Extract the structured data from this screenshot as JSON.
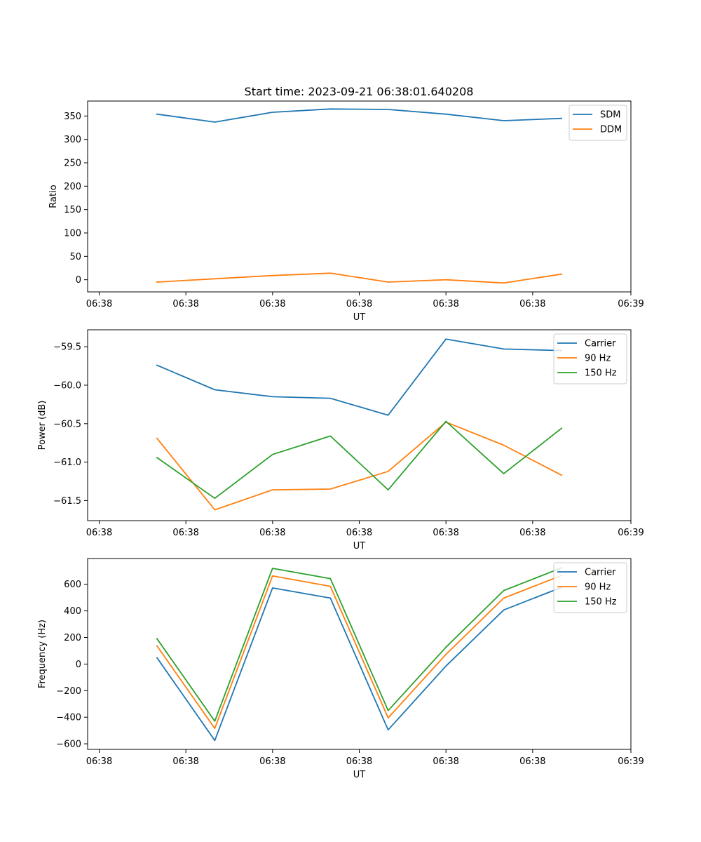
{
  "figure": {
    "title": "Start time: 2023-09-21 06:38:01.640208"
  },
  "colors": {
    "blue": "#1f77b4",
    "orange": "#ff7f0e",
    "green": "#2ca02c"
  },
  "chart_data": [
    {
      "type": "line",
      "title": "Start time: 2023-09-21 06:38:01.640208",
      "xlabel": "UT",
      "ylabel": "Ratio",
      "x": [
        1,
        2,
        3,
        4,
        5,
        6,
        7,
        8
      ],
      "xlim": [
        -0.2,
        9.2
      ],
      "x_ticks": [
        0,
        1.5,
        3,
        4.5,
        6,
        7.5,
        9.2
      ],
      "x_tick_labels": [
        "06:38",
        "06:38",
        "06:38",
        "06:38",
        "06:38",
        "06:38",
        "06:39"
      ],
      "ylim": [
        -26,
        382
      ],
      "y_ticks": [
        0,
        50,
        100,
        150,
        200,
        250,
        300,
        350
      ],
      "y_tick_labels": [
        "0",
        "50",
        "100",
        "150",
        "200",
        "250",
        "300",
        "350"
      ],
      "legend": "upper-right",
      "series": [
        {
          "name": "SDM",
          "color": "#1f77b4",
          "values": [
            354,
            337,
            358,
            365,
            364,
            354,
            340,
            345
          ]
        },
        {
          "name": "DDM",
          "color": "#ff7f0e",
          "values": [
            -5,
            2,
            9,
            14,
            -5,
            0,
            -7,
            12
          ]
        }
      ]
    },
    {
      "type": "line",
      "title": "",
      "xlabel": "UT",
      "ylabel": "Power (dB)",
      "x": [
        1,
        2,
        3,
        4,
        5,
        6,
        7,
        8
      ],
      "xlim": [
        -0.2,
        9.2
      ],
      "x_ticks": [
        0,
        1.5,
        3,
        4.5,
        6,
        7.5,
        9.2
      ],
      "x_tick_labels": [
        "06:38",
        "06:38",
        "06:38",
        "06:38",
        "06:38",
        "06:38",
        "06:39"
      ],
      "ylim": [
        -61.76,
        -59.28
      ],
      "y_ticks": [
        -61.5,
        -61.0,
        -60.5,
        -60.0,
        -59.5
      ],
      "y_tick_labels": [
        "−61.5",
        "−61.0",
        "−60.5",
        "−60.0",
        "−59.5"
      ],
      "legend": "upper-right",
      "series": [
        {
          "name": "Carrier",
          "color": "#1f77b4",
          "values": [
            -59.74,
            -60.06,
            -60.15,
            -60.17,
            -60.39,
            -59.4,
            -59.53,
            -59.55
          ]
        },
        {
          "name": "90 Hz",
          "color": "#ff7f0e",
          "values": [
            -60.69,
            -61.62,
            -61.36,
            -61.35,
            -61.12,
            -60.48,
            -60.78,
            -61.17
          ]
        },
        {
          "name": "150 Hz",
          "color": "#2ca02c",
          "values": [
            -60.94,
            -61.47,
            -60.9,
            -60.66,
            -61.36,
            -60.47,
            -61.15,
            -60.56
          ]
        }
      ]
    },
    {
      "type": "line",
      "title": "",
      "xlabel": "UT",
      "ylabel": "Frequency (Hz)",
      "x": [
        1,
        2,
        3,
        4,
        5,
        6,
        7,
        8
      ],
      "xlim": [
        -0.2,
        9.2
      ],
      "x_ticks": [
        0,
        1.5,
        3,
        4.5,
        6,
        7.5,
        9.2
      ],
      "x_tick_labels": [
        "06:38",
        "06:38",
        "06:38",
        "06:38",
        "06:38",
        "06:38",
        "06:39"
      ],
      "ylim": [
        -642,
        794
      ],
      "y_ticks": [
        -600,
        -400,
        -200,
        0,
        200,
        400,
        600
      ],
      "y_tick_labels": [
        "−600",
        "−400",
        "−200",
        "0",
        "200",
        "400",
        "600"
      ],
      "legend": "upper-right",
      "series": [
        {
          "name": "Carrier",
          "color": "#1f77b4",
          "values": [
            48,
            -575,
            573,
            496,
            -495,
            -15,
            407,
            577
          ]
        },
        {
          "name": "90 Hz",
          "color": "#ff7f0e",
          "values": [
            137,
            -484,
            663,
            585,
            -405,
            73,
            496,
            667
          ]
        },
        {
          "name": "150 Hz",
          "color": "#2ca02c",
          "values": [
            191,
            -430,
            720,
            643,
            -350,
            127,
            553,
            724
          ]
        }
      ]
    }
  ]
}
